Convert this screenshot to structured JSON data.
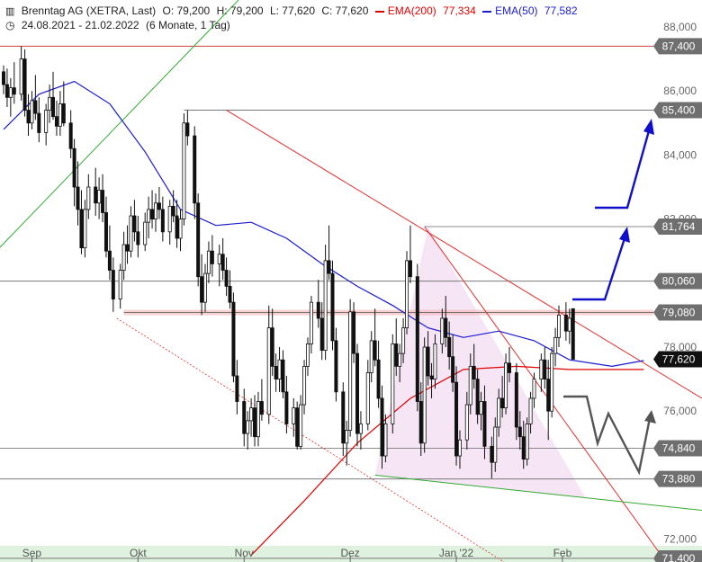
{
  "header": {
    "instrument": "Brenntag AG (XETRA, Last)",
    "open": "O: 79,200",
    "high": "H: 79,200",
    "low": "L: 77,620",
    "close": "C: 77,620",
    "ema200_label": "EMA(200)",
    "ema200_value": "77,334",
    "ema50_label": "EMA(50)",
    "ema50_value": "77,582",
    "date_range": "24.08.2021 - 21.02.2022",
    "period": "(6 Monate, 1 Tag)"
  },
  "colors": {
    "ema200": "#e00000",
    "ema50": "#1a1ad0",
    "trend_down": "#e03030",
    "trend_up": "#33aa33",
    "support_fill": "#c060c0",
    "arrow": "#1010cc",
    "scenario": "#555555",
    "badge": "#6f6f6f"
  },
  "chart_data": {
    "type": "candlestick",
    "yticks": [
      "88,000",
      "86,000",
      "84,000",
      "82,000",
      "78,000",
      "76,000",
      "72,000"
    ],
    "ytick_values": [
      88,
      86,
      84,
      82,
      78,
      76,
      72
    ],
    "ylim": [
      71.4,
      88.6
    ],
    "xlabels": [
      "Sep",
      "Okt",
      "Nov",
      "Dez",
      "Jan '22",
      "Feb"
    ],
    "xlabel_days": [
      8,
      38,
      68,
      98,
      128,
      158
    ],
    "levels": [
      {
        "value": 87.4,
        "label": "87,400"
      },
      {
        "value": 85.4,
        "label": "85,400"
      },
      {
        "value": 81.764,
        "label": "81,764"
      },
      {
        "value": 80.06,
        "label": "80,060"
      },
      {
        "value": 79.08,
        "label": "79,080"
      },
      {
        "value": 74.84,
        "label": "74,840"
      },
      {
        "value": 73.88,
        "label": "73,880"
      },
      {
        "value": 71.4,
        "label": "71,400"
      }
    ],
    "last_price": {
      "value": 77.62,
      "label": "77,620"
    },
    "candles": [
      [
        0,
        86.6,
        86.8,
        85.9,
        86.2
      ],
      [
        1,
        86.2,
        86.7,
        85.5,
        85.8
      ],
      [
        2,
        85.8,
        86.4,
        85.2,
        86.1
      ],
      [
        3,
        86.1,
        86.9,
        85.6,
        85.9
      ],
      [
        5,
        85.9,
        87.4,
        85.7,
        87.0
      ],
      [
        6,
        87.0,
        87.3,
        85.2,
        85.4
      ],
      [
        7,
        85.4,
        85.9,
        84.6,
        85.0
      ],
      [
        8,
        85.0,
        86.0,
        84.8,
        85.7
      ],
      [
        9,
        85.7,
        86.5,
        85.1,
        85.3
      ],
      [
        10,
        85.3,
        85.8,
        84.4,
        84.7
      ],
      [
        12,
        84.7,
        85.6,
        84.3,
        85.4
      ],
      [
        13,
        85.4,
        86.2,
        85.0,
        85.8
      ],
      [
        14,
        85.8,
        86.6,
        85.1,
        85.2
      ],
      [
        15,
        85.2,
        85.7,
        84.6,
        84.9
      ],
      [
        16,
        84.9,
        86.0,
        84.6,
        85.6
      ],
      [
        17,
        85.6,
        86.3,
        84.9,
        85.0
      ],
      [
        19,
        85.0,
        85.4,
        83.9,
        84.2
      ],
      [
        20,
        84.2,
        84.5,
        82.4,
        83.0
      ],
      [
        21,
        83.0,
        83.8,
        81.8,
        82.3
      ],
      [
        22,
        82.3,
        82.9,
        80.9,
        81.1
      ],
      [
        23,
        81.1,
        82.6,
        80.8,
        82.3
      ],
      [
        24,
        82.3,
        83.4,
        82.0,
        83.0
      ],
      [
        26,
        83.0,
        83.6,
        82.1,
        82.5
      ],
      [
        27,
        82.5,
        83.3,
        82.0,
        82.9
      ],
      [
        28,
        82.9,
        83.4,
        81.9,
        82.2
      ],
      [
        29,
        82.2,
        82.7,
        80.8,
        81.0
      ],
      [
        30,
        81.0,
        81.8,
        80.1,
        80.4
      ],
      [
        31,
        80.4,
        80.8,
        79.1,
        79.5
      ],
      [
        33,
        79.5,
        80.6,
        79.2,
        80.4
      ],
      [
        34,
        80.4,
        81.6,
        80.1,
        81.2
      ],
      [
        35,
        81.2,
        81.8,
        80.6,
        81.0
      ],
      [
        36,
        81.0,
        82.4,
        80.8,
        82.1
      ],
      [
        37,
        82.1,
        82.6,
        81.3,
        81.6
      ],
      [
        38,
        81.6,
        82.1,
        80.8,
        81.2
      ],
      [
        40,
        81.2,
        82.2,
        81.0,
        81.9
      ],
      [
        41,
        81.9,
        82.7,
        81.4,
        82.3
      ],
      [
        42,
        82.3,
        82.9,
        81.7,
        82.0
      ],
      [
        43,
        82.0,
        82.8,
        81.6,
        82.5
      ],
      [
        44,
        82.5,
        83.0,
        82.0,
        82.3
      ],
      [
        45,
        82.3,
        82.7,
        81.3,
        81.6
      ],
      [
        47,
        81.6,
        82.6,
        81.2,
        82.4
      ],
      [
        48,
        82.4,
        82.9,
        81.9,
        82.1
      ],
      [
        49,
        82.1,
        82.6,
        81.1,
        81.4
      ],
      [
        50,
        81.4,
        82.3,
        81.0,
        82.0
      ],
      [
        51,
        82.0,
        85.3,
        81.8,
        85.0
      ],
      [
        52,
        85.0,
        85.4,
        84.3,
        84.6
      ],
      [
        54,
        84.6,
        84.9,
        82.0,
        82.5
      ],
      [
        55,
        82.5,
        82.8,
        79.9,
        80.2
      ],
      [
        56,
        80.2,
        80.9,
        79.0,
        79.4
      ],
      [
        57,
        79.4,
        80.6,
        79.1,
        80.3
      ],
      [
        58,
        80.3,
        81.3,
        80.0,
        81.0
      ],
      [
        59,
        81.0,
        81.5,
        80.2,
        80.6
      ],
      [
        61,
        80.6,
        81.2,
        79.9,
        80.9
      ],
      [
        62,
        80.9,
        81.4,
        80.1,
        80.4
      ],
      [
        63,
        80.4,
        80.8,
        79.6,
        79.9
      ],
      [
        64,
        79.9,
        80.4,
        79.2,
        79.4
      ],
      [
        65,
        79.4,
        79.7,
        76.9,
        77.1
      ],
      [
        66,
        77.1,
        77.6,
        75.9,
        76.3
      ],
      [
        68,
        76.3,
        76.7,
        74.9,
        75.3
      ],
      [
        69,
        75.3,
        76.0,
        74.8,
        75.7
      ],
      [
        70,
        75.7,
        76.4,
        75.2,
        76.1
      ],
      [
        71,
        76.1,
        76.5,
        74.9,
        75.2
      ],
      [
        72,
        75.2,
        76.6,
        74.9,
        76.3
      ],
      [
        73,
        76.3,
        77.0,
        75.7,
        75.9
      ],
      [
        75,
        75.9,
        79.3,
        75.6,
        78.6
      ],
      [
        76,
        78.6,
        79.2,
        77.1,
        77.4
      ],
      [
        77,
        77.4,
        77.8,
        76.6,
        77.0
      ],
      [
        78,
        77.0,
        78.0,
        76.6,
        77.6
      ],
      [
        79,
        77.6,
        77.9,
        76.4,
        76.6
      ],
      [
        80,
        76.6,
        77.1,
        75.3,
        75.6
      ],
      [
        82,
        75.6,
        76.4,
        75.2,
        76.1
      ],
      [
        83,
        76.1,
        76.3,
        74.8,
        74.9
      ],
      [
        84,
        74.9,
        76.5,
        74.8,
        76.2
      ],
      [
        85,
        76.2,
        77.6,
        75.9,
        77.4
      ],
      [
        86,
        77.4,
        78.3,
        77.1,
        78.1
      ],
      [
        87,
        78.1,
        79.6,
        77.8,
        79.4
      ],
      [
        89,
        79.4,
        80.1,
        78.6,
        78.9
      ],
      [
        90,
        78.9,
        79.4,
        77.6,
        77.9
      ],
      [
        91,
        77.9,
        81.2,
        77.6,
        80.7
      ],
      [
        92,
        80.7,
        81.8,
        80.1,
        80.3
      ],
      [
        93,
        80.3,
        80.7,
        77.9,
        78.2
      ],
      [
        94,
        78.2,
        78.6,
        76.3,
        76.6
      ],
      [
        96,
        76.6,
        76.9,
        74.6,
        75.0
      ],
      [
        97,
        75.0,
        75.7,
        74.3,
        75.4
      ],
      [
        98,
        75.4,
        79.5,
        75.2,
        79.1
      ],
      [
        99,
        79.1,
        79.4,
        77.5,
        77.8
      ],
      [
        100,
        77.8,
        78.1,
        74.9,
        75.3
      ],
      [
        101,
        75.3,
        76.0,
        74.8,
        75.6
      ],
      [
        103,
        75.6,
        77.6,
        75.4,
        77.2
      ],
      [
        104,
        77.2,
        78.5,
        76.9,
        78.2
      ],
      [
        105,
        78.2,
        79.2,
        77.4,
        77.6
      ],
      [
        106,
        77.6,
        78.2,
        76.1,
        76.4
      ],
      [
        107,
        76.4,
        76.8,
        74.2,
        74.6
      ],
      [
        108,
        74.6,
        75.9,
        74.4,
        75.6
      ],
      [
        110,
        75.6,
        78.4,
        75.3,
        78.1
      ],
      [
        111,
        78.1,
        78.9,
        77.1,
        77.4
      ],
      [
        112,
        77.4,
        78.1,
        76.9,
        77.8
      ],
      [
        113,
        77.8,
        78.9,
        77.5,
        78.6
      ],
      [
        114,
        78.6,
        81.0,
        78.4,
        80.7
      ],
      [
        115,
        80.7,
        81.8,
        80.0,
        80.2
      ],
      [
        117,
        80.2,
        80.6,
        76.0,
        76.3
      ],
      [
        118,
        76.3,
        76.9,
        74.6,
        75.0
      ],
      [
        119,
        75.0,
        78.3,
        74.7,
        78.0
      ],
      [
        120,
        78.0,
        78.5,
        76.8,
        77.1
      ],
      [
        121,
        77.1,
        77.5,
        76.4,
        77.0
      ],
      [
        122,
        77.0,
        78.4,
        76.7,
        78.1
      ],
      [
        124,
        78.1,
        79.2,
        77.8,
        78.9
      ],
      [
        125,
        78.9,
        79.6,
        78.0,
        78.3
      ],
      [
        126,
        78.3,
        78.8,
        77.3,
        77.7
      ],
      [
        127,
        77.7,
        78.4,
        76.6,
        76.9
      ],
      [
        128,
        76.9,
        77.4,
        74.3,
        74.6
      ],
      [
        129,
        74.6,
        75.4,
        74.2,
        75.1
      ],
      [
        131,
        75.1,
        76.6,
        74.8,
        76.2
      ],
      [
        132,
        76.2,
        77.8,
        75.9,
        77.4
      ],
      [
        133,
        77.4,
        78.1,
        76.7,
        77.0
      ],
      [
        134,
        77.0,
        77.3,
        75.6,
        75.9
      ],
      [
        135,
        75.9,
        76.6,
        75.4,
        76.3
      ],
      [
        136,
        76.3,
        76.8,
        74.5,
        74.9
      ],
      [
        138,
        74.9,
        75.2,
        73.9,
        74.4
      ],
      [
        139,
        74.4,
        75.8,
        74.1,
        75.5
      ],
      [
        140,
        75.5,
        76.7,
        75.2,
        76.4
      ],
      [
        141,
        76.4,
        77.1,
        75.8,
        76.1
      ],
      [
        142,
        76.1,
        77.8,
        75.9,
        77.5
      ],
      [
        143,
        77.5,
        78.0,
        76.9,
        77.2
      ],
      [
        145,
        77.2,
        77.5,
        75.1,
        75.5
      ],
      [
        146,
        75.5,
        76.0,
        74.8,
        75.2
      ],
      [
        147,
        75.2,
        75.7,
        74.2,
        74.5
      ],
      [
        148,
        74.5,
        75.8,
        74.3,
        75.6
      ],
      [
        149,
        75.6,
        76.6,
        75.3,
        76.4
      ],
      [
        150,
        76.4,
        77.2,
        76.1,
        77.0
      ],
      [
        152,
        77.0,
        77.8,
        76.6,
        77.6
      ],
      [
        153,
        77.6,
        78.0,
        76.7,
        77.0
      ],
      [
        154,
        77.0,
        77.6,
        75.1,
        76.0
      ],
      [
        155,
        76.0,
        78.0,
        75.8,
        77.8
      ],
      [
        156,
        77.8,
        78.6,
        77.4,
        78.3
      ],
      [
        157,
        78.3,
        79.3,
        78.0,
        79.0
      ],
      [
        159,
        79.0,
        79.4,
        78.2,
        78.5
      ],
      [
        160,
        78.5,
        79.2,
        78.1,
        78.9
      ],
      [
        161,
        79.2,
        79.2,
        77.62,
        77.62
      ]
    ],
    "ema200": [
      [
        70,
        71.5
      ],
      [
        85,
        73.2
      ],
      [
        100,
        75.0
      ],
      [
        115,
        76.4
      ],
      [
        130,
        77.3
      ],
      [
        145,
        77.4
      ],
      [
        160,
        77.3
      ],
      [
        181,
        77.3
      ]
    ],
    "ema50": [
      [
        0,
        84.8
      ],
      [
        10,
        85.9
      ],
      [
        20,
        86.3
      ],
      [
        30,
        85.6
      ],
      [
        40,
        84.1
      ],
      [
        50,
        82.3
      ],
      [
        60,
        81.8
      ],
      [
        70,
        81.9
      ],
      [
        80,
        81.4
      ],
      [
        90,
        80.6
      ],
      [
        100,
        79.9
      ],
      [
        110,
        79.3
      ],
      [
        120,
        78.6
      ],
      [
        130,
        78.3
      ],
      [
        140,
        78.5
      ],
      [
        150,
        78.2
      ],
      [
        160,
        77.6
      ],
      [
        172,
        77.4
      ],
      [
        181,
        77.58
      ]
    ]
  }
}
